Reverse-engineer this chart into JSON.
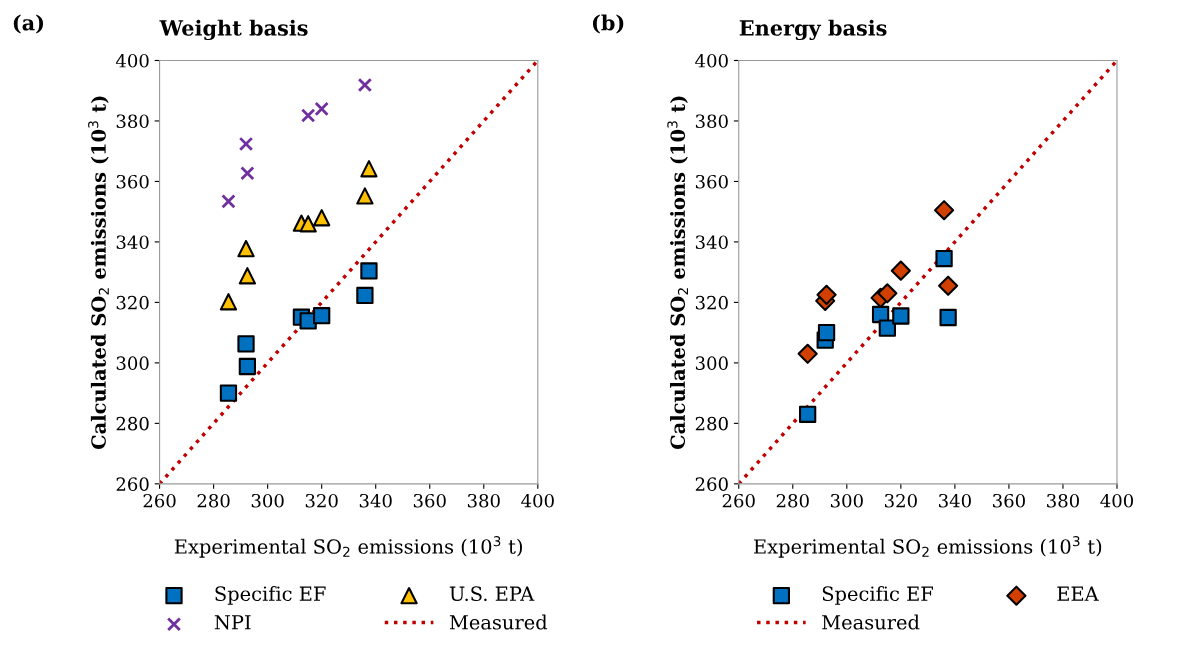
{
  "chart_data": [
    {
      "type": "scatter",
      "title": "Weight basis",
      "annotations": [
        "(a)"
      ],
      "xlabel": "Experimental SO$_{2}$ emissions (10$^{3}$ t)",
      "ylabel": "Calculated SO$_{2}$ emissions (10$^{3}$ t)",
      "xlim": [
        260,
        400
      ],
      "ylim": [
        260,
        400
      ],
      "xticks": [
        260,
        280,
        300,
        320,
        340,
        360,
        380,
        400
      ],
      "yticks": [
        260,
        280,
        300,
        320,
        340,
        360,
        380,
        400
      ],
      "grid": false,
      "legend": "bottom",
      "x": [
        285.5,
        292,
        292.5,
        312.5,
        315,
        320,
        336,
        337.5
      ],
      "series": [
        {
          "name": "Specific EF",
          "color": "#0070c0",
          "marker": "square",
          "values": [
            290,
            306.3,
            298.8,
            315.1,
            313.9,
            315.6,
            322.3,
            330.4
          ]
        },
        {
          "name": "U.S. EPA",
          "color": "#ffc000",
          "marker": "triangle",
          "values": [
            320.2,
            337.8,
            328.8,
            346.2,
            346,
            348,
            355.2,
            364.2
          ]
        },
        {
          "name": "NPI",
          "color": "#7030a0",
          "marker": "cross",
          "x": [
            285.5,
            292,
            292.5,
            315,
            320,
            336
          ],
          "values": [
            353.4,
            372.4,
            362.7,
            381.8,
            384,
            391.9
          ]
        },
        {
          "name": "Measured",
          "type": "line",
          "color": "#c00000",
          "line_style": "dotted",
          "marker": "none",
          "x": [
            260,
            400
          ],
          "values": [
            260,
            400
          ]
        }
      ]
    },
    {
      "type": "scatter",
      "title": "Energy basis",
      "annotations": [
        "(b)"
      ],
      "xlabel": "Experimental SO$_{2}$ emissions (10$^{3}$ t)",
      "ylabel": "Calculated SO$_{2}$ emissions (10$^{3}$ t)",
      "xlim": [
        260,
        400
      ],
      "ylim": [
        260,
        400
      ],
      "xticks": [
        260,
        280,
        300,
        320,
        340,
        360,
        380,
        400
      ],
      "yticks": [
        260,
        280,
        300,
        320,
        340,
        360,
        380,
        400
      ],
      "grid": false,
      "legend": "bottom",
      "x": [
        285.5,
        292,
        292.5,
        312.5,
        315,
        320,
        336,
        337.5
      ],
      "series": [
        {
          "name": "Specific EF",
          "color": "#0070c0",
          "marker": "square",
          "values": [
            283,
            307.5,
            310,
            316,
            311.5,
            315.5,
            334.5,
            315
          ]
        },
        {
          "name": "EEA",
          "color": "#d24000",
          "marker": "diamond",
          "values": [
            303,
            320.5,
            322.5,
            321.5,
            323,
            330.5,
            350.5,
            325.5
          ]
        },
        {
          "name": "Measured",
          "type": "line",
          "color": "#c00000",
          "line_style": "dotted",
          "marker": "none",
          "x": [
            260,
            400
          ],
          "values": [
            260,
            400
          ]
        }
      ]
    }
  ]
}
